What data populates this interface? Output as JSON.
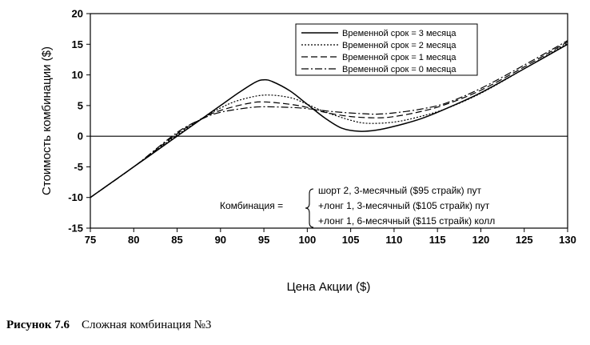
{
  "chart_data": {
    "type": "line",
    "title": "",
    "xlabel": "Цена Акции ($)",
    "ylabel": "Стоимость комбинации ($)",
    "xlim": [
      75,
      130
    ],
    "ylim": [
      -15,
      20
    ],
    "xticks": [
      75,
      80,
      85,
      90,
      95,
      100,
      105,
      110,
      115,
      120,
      125,
      130
    ],
    "yticks": [
      -15,
      -10,
      -5,
      0,
      5,
      10,
      15,
      20
    ],
    "grid": false,
    "legend_position": "top-right",
    "series": [
      {
        "name": "Временной срок = 3 месяца",
        "style": "solid",
        "x": [
          75,
          80,
          85,
          88,
          90,
          92,
          94,
          95,
          96,
          98,
          100,
          102,
          104,
          106,
          108,
          110,
          113,
          116,
          120,
          125,
          130
        ],
        "y": [
          -10,
          -5,
          0,
          3,
          5,
          7,
          8.8,
          9.2,
          8.9,
          7.4,
          5.2,
          3,
          1.3,
          0.8,
          1,
          1.6,
          2.8,
          4.5,
          7.1,
          11,
          15
        ]
      },
      {
        "name": "Временной срок = 2 месяца",
        "style": "dotted",
        "x": [
          75,
          80,
          85,
          88,
          90,
          92,
          95,
          98,
          100,
          102,
          105,
          107,
          110,
          113,
          116,
          120,
          125,
          130
        ],
        "y": [
          -10,
          -5,
          0.2,
          3,
          4.6,
          5.8,
          6.7,
          6.3,
          5.2,
          4,
          2.6,
          2.1,
          2.3,
          3.2,
          4.5,
          7,
          11,
          15.2
        ]
      },
      {
        "name": "Временной срок = 1 месяца",
        "style": "dashed",
        "x": [
          75,
          80,
          85,
          88,
          90,
          93,
          95,
          98,
          100,
          102,
          105,
          108,
          110,
          113,
          116,
          120,
          125,
          130
        ],
        "y": [
          -10,
          -5,
          0.4,
          3,
          4.2,
          5.3,
          5.6,
          5.2,
          4.7,
          3.9,
          3.2,
          3,
          3.2,
          4,
          5.2,
          7.5,
          11.3,
          15.4
        ]
      },
      {
        "name": "Временной срок = 0 месяца",
        "style": "dashdot",
        "x": [
          75,
          80,
          85,
          88,
          90,
          93,
          95,
          98,
          100,
          103,
          106,
          108,
          110,
          113,
          116,
          120,
          125,
          130
        ],
        "y": [
          -10,
          -5,
          0.6,
          2.9,
          3.9,
          4.6,
          4.8,
          4.7,
          4.5,
          4,
          3.7,
          3.6,
          3.8,
          4.4,
          5.4,
          7.8,
          11.6,
          15.6
        ]
      }
    ],
    "annotation": {
      "label": "Комбинация =",
      "lines": [
        "шорт 2, 3-месячный ($95 страйк) пут",
        "+лонг 1, 3-месячный ($105 страйк) пут",
        "+лонг 1, 6-месячный ($115 страйк) колл"
      ]
    }
  },
  "caption": {
    "number": "Рисунок 7.6",
    "text": "Сложная комбинация №3"
  }
}
